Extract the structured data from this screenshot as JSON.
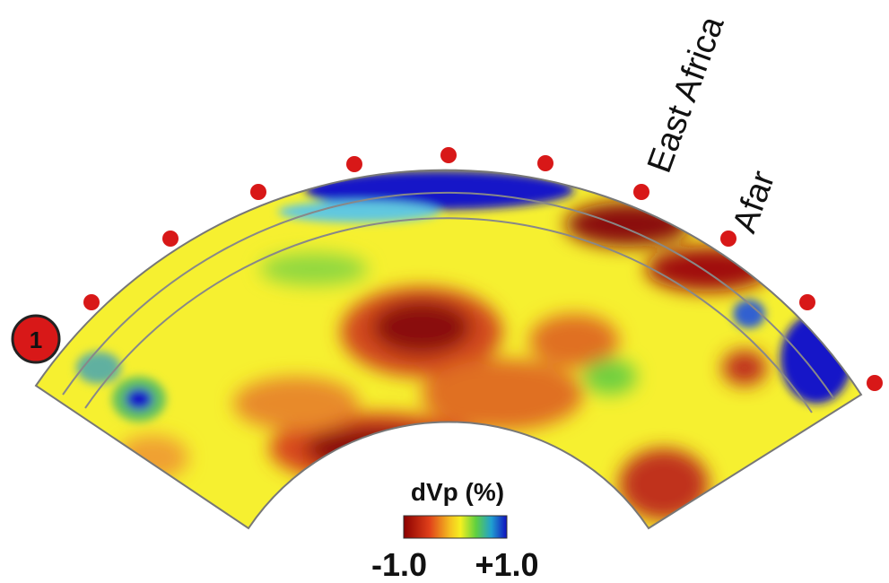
{
  "section": {
    "marker": "1",
    "labels": [
      "East Africa",
      "Afar"
    ]
  },
  "colorbar": {
    "title": "dVp (%)",
    "min_label": "-1.0",
    "max_label": "+1.0"
  }
}
